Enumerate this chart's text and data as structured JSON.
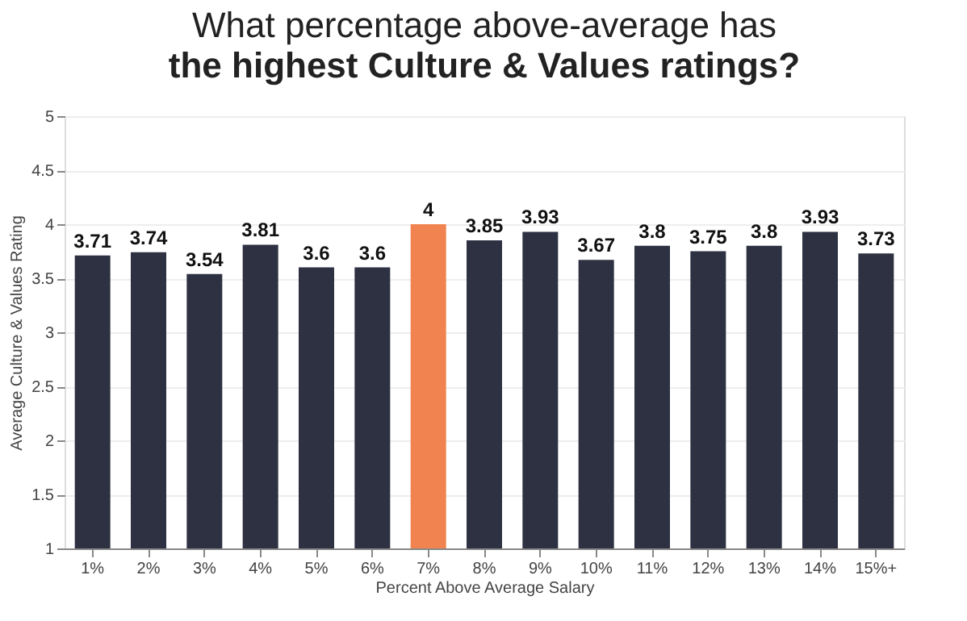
{
  "chart_data": {
    "type": "bar",
    "title": "What percentage above-average has",
    "subtitle": "the highest Culture & Values ratings?",
    "xlabel": "Percent Above Average Salary",
    "ylabel": "Average Culture & Values Rating",
    "categories": [
      "1%",
      "2%",
      "3%",
      "4%",
      "5%",
      "6%",
      "7%",
      "8%",
      "9%",
      "10%",
      "11%",
      "12%",
      "13%",
      "14%",
      "15%+"
    ],
    "values": [
      3.71,
      3.74,
      3.54,
      3.81,
      3.6,
      3.6,
      4,
      3.85,
      3.93,
      3.67,
      3.8,
      3.75,
      3.8,
      3.93,
      3.73
    ],
    "colors": [
      "#2d3142",
      "#2d3142",
      "#2d3142",
      "#2d3142",
      "#2d3142",
      "#2d3142",
      "#f0834f",
      "#2d3142",
      "#2d3142",
      "#2d3142",
      "#2d3142",
      "#2d3142",
      "#2d3142",
      "#2d3142",
      "#2d3142"
    ],
    "ylim": [
      1,
      5
    ],
    "yticks": [
      1,
      1.5,
      2,
      2.5,
      3,
      3.5,
      4,
      4.5,
      5
    ],
    "grid": "y",
    "data_labels": true
  }
}
